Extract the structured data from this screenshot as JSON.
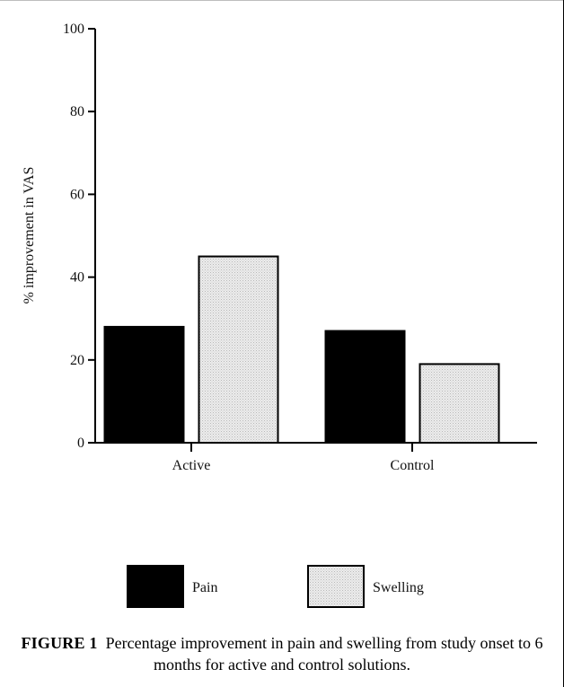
{
  "chart_data": {
    "type": "bar",
    "categories": [
      "Active",
      "Control"
    ],
    "series": [
      {
        "name": "Pain",
        "values": [
          28,
          27
        ]
      },
      {
        "name": "Swelling",
        "values": [
          45,
          19
        ]
      }
    ],
    "ylabel": "% improvement in VAS",
    "xlabel": "",
    "ylim": [
      0,
      100
    ],
    "yticks": [
      0,
      20,
      40,
      60,
      80,
      100
    ],
    "grid": false,
    "legend_position": "bottom",
    "colors": {
      "Pain": "#000000",
      "Swelling": "#e3e3e3"
    }
  },
  "caption": {
    "label": "FIGURE 1",
    "text": "Percentage improvement in pain and swelling from study onset to 6 months for active and control solutions."
  }
}
